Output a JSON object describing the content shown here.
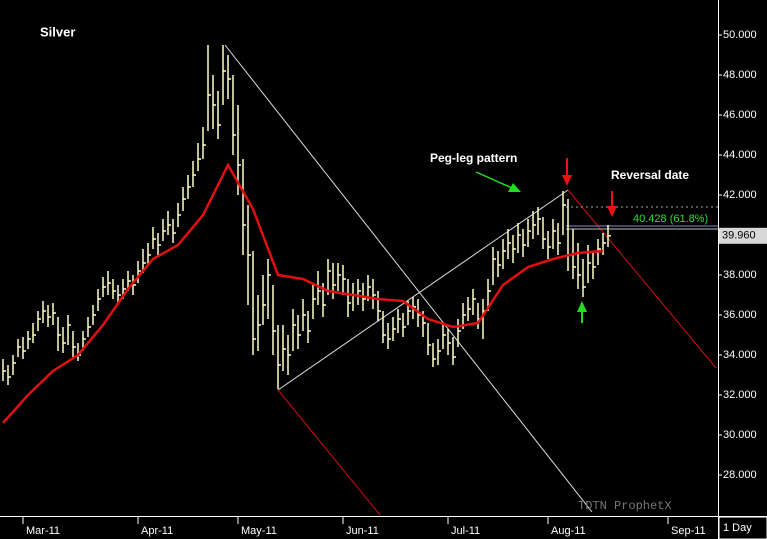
{
  "chart_data": {
    "type": "ohlc",
    "title": "Silver",
    "x": [
      0,
      1,
      2,
      3,
      4,
      5,
      6,
      7,
      8,
      9,
      10,
      11,
      12,
      13,
      14,
      15,
      16,
      17,
      18,
      19,
      20,
      21,
      22,
      23,
      24,
      25,
      26,
      27,
      28,
      29,
      30,
      31,
      32,
      33,
      34,
      35,
      36,
      37,
      38,
      39,
      40,
      41,
      42,
      43,
      44,
      45,
      46,
      47,
      48,
      49,
      50,
      51,
      52,
      53,
      54,
      55,
      56,
      57,
      58,
      59,
      60,
      61,
      62,
      63,
      64,
      65,
      66,
      67,
      68,
      69,
      70,
      71,
      72,
      73,
      74,
      75,
      76,
      77,
      78,
      79,
      80,
      81,
      82,
      83,
      84,
      85,
      86,
      87,
      88,
      89,
      90,
      91,
      92,
      93,
      94,
      95,
      96,
      97,
      98,
      99,
      100,
      101,
      102,
      103,
      104,
      105,
      106,
      107,
      108,
      109,
      110,
      111,
      112,
      113,
      114,
      115,
      116,
      117,
      118,
      119,
      120,
      121
    ],
    "high": [
      33.8,
      33.5,
      34.0,
      34.8,
      34.9,
      35.2,
      35.6,
      36.2,
      36.7,
      36.5,
      36.6,
      35.9,
      35.4,
      36.0,
      35.2,
      34.6,
      35.2,
      35.9,
      36.5,
      37.3,
      37.9,
      38.2,
      37.8,
      37.5,
      37.8,
      38.2,
      38.0,
      38.7,
      39.3,
      39.6,
      40.4,
      40.1,
      40.8,
      41.2,
      40.8,
      41.6,
      42.4,
      43.0,
      43.7,
      44.6,
      45.4,
      49.5,
      48.0,
      47.2,
      49.5,
      49.0,
      48.0,
      46.5,
      43.8,
      41.5,
      39.2,
      37.0,
      38.0,
      38.8,
      37.5,
      35.5,
      35.5,
      35.0,
      36.3,
      36.0,
      36.8,
      36.2,
      37.5,
      38.2,
      37.6,
      38.8,
      38.6,
      38.6,
      38.5,
      37.8,
      37.6,
      37.8,
      37.6,
      38.0,
      37.8,
      37.2,
      36.2,
      35.6,
      35.9,
      36.3,
      36.1,
      36.7,
      36.9,
      36.8,
      36.2,
      35.6,
      34.6,
      34.8,
      35.5,
      35.3,
      34.9,
      35.8,
      36.6,
      36.9,
      37.3,
      36.6,
      36.8,
      37.8,
      39.4,
      39.2,
      39.8,
      40.3,
      40.0,
      40.6,
      40.3,
      40.8,
      41.2,
      41.4,
      40.9,
      40.2,
      40.8,
      40.6,
      42.2,
      41.8,
      40.3,
      39.6,
      38.8,
      39.5,
      39.2,
      39.8,
      40.1,
      40.5
    ],
    "low": [
      32.7,
      32.5,
      33.0,
      33.9,
      33.8,
      34.3,
      34.6,
      35.2,
      35.6,
      35.4,
      35.5,
      34.2,
      34.1,
      34.5,
      33.9,
      33.7,
      34.2,
      34.9,
      35.5,
      36.2,
      36.9,
      37.0,
      36.8,
      36.6,
      36.8,
      37.2,
      37.0,
      37.6,
      38.1,
      38.5,
      39.3,
      39.0,
      39.7,
      40.0,
      39.6,
      40.4,
      41.2,
      41.8,
      42.4,
      43.2,
      43.8,
      45.2,
      45.3,
      44.8,
      46.5,
      46.8,
      44.0,
      42.0,
      39.0,
      36.5,
      34.0,
      34.2,
      35.5,
      35.8,
      34.0,
      32.3,
      33.2,
      33.0,
      34.2,
      34.3,
      35.2,
      34.6,
      35.8,
      36.5,
      35.9,
      37.0,
      36.8,
      37.2,
      37.0,
      35.9,
      36.2,
      36.5,
      36.2,
      36.7,
      36.3,
      35.7,
      34.6,
      34.3,
      34.7,
      35.1,
      34.9,
      35.5,
      35.8,
      35.4,
      34.9,
      34.0,
      33.4,
      33.5,
      34.3,
      34.0,
      33.5,
      34.4,
      35.3,
      35.7,
      36.0,
      35.3,
      34.8,
      36.2,
      37.5,
      37.9,
      38.3,
      38.8,
      38.6,
      39.1,
      38.9,
      39.4,
      39.8,
      40.0,
      39.3,
      38.8,
      39.3,
      39.0,
      40.0,
      38.2,
      37.8,
      37.3,
      36.9,
      37.6,
      37.8,
      38.5,
      39.0,
      39.4
    ],
    "close": [
      33.2,
      32.9,
      33.6,
      34.4,
      34.2,
      34.8,
      35.0,
      35.8,
      36.2,
      35.9,
      36.1,
      35.0,
      34.6,
      35.5,
      34.4,
      34.0,
      34.8,
      35.4,
      36.0,
      36.8,
      37.4,
      37.6,
      37.2,
      37.0,
      37.3,
      37.7,
      37.5,
      38.2,
      38.6,
      39.0,
      39.8,
      39.5,
      40.2,
      40.5,
      40.1,
      41.0,
      41.8,
      42.4,
      43.0,
      43.8,
      44.5,
      47.0,
      46.5,
      45.5,
      48.2,
      47.8,
      45.0,
      43.5,
      40.5,
      39.0,
      34.8,
      35.5,
      36.5,
      38.0,
      35.2,
      33.5,
      34.3,
      34.0,
      35.5,
      35.0,
      36.0,
      35.2,
      36.8,
      37.2,
      36.5,
      38.2,
      37.5,
      38.0,
      37.8,
      36.6,
      37.0,
      37.2,
      36.8,
      37.4,
      37.0,
      36.2,
      35.0,
      34.8,
      35.3,
      35.8,
      35.4,
      36.2,
      36.4,
      36.0,
      35.6,
      34.5,
      33.8,
      34.2,
      35.0,
      34.6,
      33.9,
      35.2,
      36.0,
      36.3,
      36.8,
      35.8,
      36.2,
      37.2,
      38.8,
      38.5,
      39.2,
      39.6,
      39.3,
      40.0,
      39.5,
      40.2,
      40.5,
      40.8,
      39.8,
      39.4,
      40.2,
      39.6,
      41.5,
      39.0,
      38.4,
      38.0,
      37.4,
      38.6,
      38.4,
      39.3,
      39.6,
      39.96
    ],
    "bar_color": "#ffffc8",
    "moving_average": {
      "color": "#e01010",
      "x": [
        0,
        5,
        10,
        15,
        20,
        25,
        30,
        35,
        40,
        45,
        50,
        55,
        60,
        65,
        70,
        75,
        80,
        85,
        90,
        95,
        100,
        105,
        110,
        115,
        120
      ],
      "values": [
        30.6,
        32.0,
        33.2,
        34.0,
        35.5,
        37.3,
        38.8,
        39.5,
        41.0,
        43.5,
        41.3,
        38.0,
        37.8,
        37.2,
        37.0,
        36.8,
        36.7,
        35.8,
        35.4,
        35.6,
        37.5,
        38.4,
        38.8,
        39.1,
        39.2
      ]
    },
    "last_price": {
      "value": 39.96,
      "label": "39.960"
    },
    "annotations": [
      "Peg-leg pattern",
      "Reversal date",
      "40.428 (61.8%)"
    ],
    "watermark": "TDTN ProphetX",
    "interval": "1 Day",
    "xlim": [
      -0.6,
      143
    ],
    "xticks": [
      {
        "value": 4,
        "label": "Mar-11"
      },
      {
        "value": 27,
        "label": "Apr-11"
      },
      {
        "value": 47,
        "label": "May-11"
      },
      {
        "value": 68,
        "label": "Jun-11"
      },
      {
        "value": 89,
        "label": "Jul-11"
      },
      {
        "value": 109,
        "label": "Aug-11"
      },
      {
        "value": 133,
        "label": "Sep-11"
      }
    ],
    "ylim": [
      26,
      51.75
    ],
    "yticks": [
      {
        "value": 28,
        "label": "28.000"
      },
      {
        "value": 30,
        "label": "30.000"
      },
      {
        "value": 32,
        "label": "32.000"
      },
      {
        "value": 34,
        "label": "34.000"
      },
      {
        "value": 36,
        "label": "36.000"
      },
      {
        "value": 38,
        "label": "38.000"
      },
      {
        "value": 40,
        "label": "40.000"
      },
      {
        "value": 42,
        "label": "42.000"
      },
      {
        "value": 44,
        "label": "44.000"
      },
      {
        "value": 46,
        "label": "46.000"
      },
      {
        "value": 48,
        "label": "48.000"
      },
      {
        "value": 50,
        "label": "50.000"
      }
    ]
  }
}
